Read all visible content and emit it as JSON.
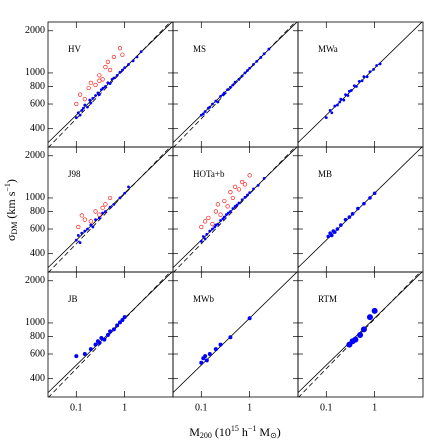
{
  "figure": {
    "xlabel": [
      "M",
      "200",
      " (10",
      "15",
      " h",
      "−1",
      " M",
      "⊙",
      ")"
    ],
    "ylabel": [
      "σ",
      "DM",
      " (km s",
      "−1",
      ")"
    ]
  },
  "chart_data": [
    {
      "type": "scatter",
      "title": "HV",
      "log_x": true,
      "log_y": true,
      "xlim": [
        0.026,
        10
      ],
      "ylim": [
        296,
        2310
      ],
      "xticks": [
        0.1,
        1
      ],
      "yticks": [
        400,
        600,
        800,
        1000,
        2000
      ],
      "show_xtick_labels": false,
      "show_ytick_labels": true,
      "lines": [
        {
          "dash": false,
          "x": [
            0.026,
            10
          ],
          "values": [
            318,
            2346
          ]
        },
        {
          "dash": true,
          "x": [
            0.026,
            10
          ],
          "values": [
            292,
            2420
          ]
        }
      ],
      "series": [
        {
          "color": "#0000ff",
          "marker": "dot",
          "size": 1.4,
          "x": [
            0.1,
            0.11,
            0.12,
            0.13,
            0.14,
            0.15,
            0.17,
            0.19,
            0.2,
            0.22,
            0.25,
            0.28,
            0.3,
            0.33,
            0.36,
            0.4,
            0.45,
            0.5,
            0.55,
            0.6,
            0.7,
            0.8,
            0.9,
            1.0,
            1.2,
            1.5,
            1.8,
            2.2
          ],
          "values": [
            480,
            520,
            500,
            540,
            560,
            590,
            570,
            640,
            610,
            660,
            690,
            720,
            700,
            760,
            780,
            800,
            850,
            840,
            900,
            920,
            960,
            1010,
            1050,
            1090,
            1150,
            1220,
            1300,
            1420
          ]
        },
        {
          "color": "#ff0000",
          "marker": "open",
          "size": 1.8,
          "x": [
            0.1,
            0.12,
            0.15,
            0.18,
            0.2,
            0.25,
            0.3,
            0.35,
            0.4,
            0.5,
            0.6,
            0.8,
            0.3,
            0.45,
            0.9
          ],
          "values": [
            600,
            700,
            650,
            780,
            850,
            820,
            960,
            900,
            1100,
            1050,
            1300,
            1500,
            880,
            1200,
            1350
          ]
        }
      ]
    },
    {
      "type": "scatter",
      "title": "MS",
      "log_x": true,
      "log_y": true,
      "xlim": [
        0.026,
        10
      ],
      "ylim": [
        296,
        2310
      ],
      "xticks": [
        0.1,
        1
      ],
      "yticks": [
        400,
        600,
        800,
        1000,
        2000
      ],
      "show_xtick_labels": false,
      "show_ytick_labels": false,
      "lines": [
        {
          "dash": false,
          "x": [
            0.026,
            10
          ],
          "values": [
            318,
            2346
          ]
        },
        {
          "dash": true,
          "x": [
            0.026,
            10
          ],
          "values": [
            292,
            2420
          ]
        }
      ],
      "series": [
        {
          "color": "#0000ff",
          "marker": "dot",
          "size": 1.4,
          "x": [
            0.1,
            0.11,
            0.12,
            0.14,
            0.15,
            0.17,
            0.2,
            0.22,
            0.25,
            0.28,
            0.3,
            0.35,
            0.4,
            0.45,
            0.5,
            0.6,
            0.7,
            0.8,
            0.9,
            1.0,
            1.2,
            1.4,
            1.7,
            2.0,
            2.5
          ],
          "values": [
            500,
            510,
            530,
            560,
            570,
            600,
            630,
            620,
            680,
            700,
            720,
            760,
            790,
            820,
            860,
            900,
            950,
            1000,
            1040,
            1080,
            1150,
            1210,
            1290,
            1370,
            1480
          ]
        }
      ]
    },
    {
      "type": "scatter",
      "title": "MWa",
      "log_x": true,
      "log_y": true,
      "xlim": [
        0.026,
        10
      ],
      "ylim": [
        296,
        2310
      ],
      "xticks": [
        0.1,
        1
      ],
      "yticks": [
        400,
        600,
        800,
        1000,
        2000
      ],
      "show_xtick_labels": false,
      "show_ytick_labels": false,
      "lines": [
        {
          "dash": false,
          "x": [
            0.026,
            10
          ],
          "values": [
            318,
            2346
          ]
        }
      ],
      "series": [
        {
          "color": "#0000ff",
          "marker": "dot",
          "size": 1.4,
          "x": [
            0.1,
            0.12,
            0.13,
            0.15,
            0.17,
            0.19,
            0.2,
            0.23,
            0.25,
            0.28,
            0.3,
            0.33,
            0.38,
            0.42,
            0.48,
            0.55,
            0.6,
            0.7,
            0.8,
            0.95,
            1.1,
            1.3
          ],
          "values": [
            480,
            540,
            520,
            580,
            590,
            620,
            650,
            640,
            700,
            690,
            740,
            750,
            810,
            800,
            870,
            880,
            940,
            940,
            1020,
            1060,
            1130,
            1160
          ]
        }
      ]
    },
    {
      "type": "scatter",
      "title": "J98",
      "log_x": true,
      "log_y": true,
      "xlim": [
        0.026,
        10
      ],
      "ylim": [
        296,
        2310
      ],
      "xticks": [
        0.1,
        1
      ],
      "yticks": [
        400,
        600,
        800,
        1000,
        2000
      ],
      "show_xtick_labels": false,
      "show_ytick_labels": true,
      "lines": [
        {
          "dash": false,
          "x": [
            0.026,
            10
          ],
          "values": [
            318,
            2346
          ]
        },
        {
          "dash": true,
          "x": [
            0.026,
            10
          ],
          "values": [
            292,
            2420
          ]
        }
      ],
      "series": [
        {
          "color": "#0000ff",
          "marker": "dot",
          "size": 1.4,
          "x": [
            0.1,
            0.11,
            0.12,
            0.13,
            0.15,
            0.17,
            0.2,
            0.22,
            0.25,
            0.3,
            0.35,
            0.4,
            0.5,
            0.6,
            0.8,
            1.0,
            1.2
          ],
          "values": [
            500,
            540,
            480,
            560,
            580,
            600,
            640,
            620,
            700,
            720,
            780,
            800,
            860,
            900,
            1000,
            1080,
            1200
          ]
        },
        {
          "color": "#ff0000",
          "marker": "open",
          "size": 1.8,
          "x": [
            0.11,
            0.13,
            0.15,
            0.2,
            0.25,
            0.3,
            0.35,
            0.4,
            0.5
          ],
          "values": [
            620,
            750,
            700,
            680,
            800,
            760,
            850,
            900,
            1000
          ]
        }
      ]
    },
    {
      "type": "scatter",
      "title": "HOTa+b",
      "log_x": true,
      "log_y": true,
      "xlim": [
        0.026,
        10
      ],
      "ylim": [
        296,
        2310
      ],
      "xticks": [
        0.1,
        1
      ],
      "yticks": [
        400,
        600,
        800,
        1000,
        2000
      ],
      "show_xtick_labels": false,
      "show_ytick_labels": false,
      "lines": [
        {
          "dash": false,
          "x": [
            0.026,
            10
          ],
          "values": [
            318,
            2346
          ]
        },
        {
          "dash": true,
          "x": [
            0.026,
            10
          ],
          "values": [
            292,
            2420
          ]
        }
      ],
      "series": [
        {
          "color": "#0000ff",
          "marker": "dot",
          "size": 1.4,
          "x": [
            0.1,
            0.11,
            0.12,
            0.13,
            0.15,
            0.17,
            0.19,
            0.2,
            0.22,
            0.25,
            0.28,
            0.3,
            0.33,
            0.36,
            0.4,
            0.45,
            0.5,
            0.55,
            0.6,
            0.7,
            0.8,
            0.9,
            1.0,
            1.2,
            1.5,
            2.0
          ],
          "values": [
            490,
            530,
            510,
            550,
            580,
            600,
            620,
            640,
            650,
            690,
            710,
            730,
            760,
            780,
            800,
            840,
            870,
            890,
            920,
            970,
            1010,
            1050,
            1090,
            1160,
            1230,
            1380
          ]
        },
        {
          "color": "#ff0000",
          "marker": "open",
          "size": 1.8,
          "x": [
            0.1,
            0.12,
            0.14,
            0.17,
            0.2,
            0.22,
            0.25,
            0.3,
            0.35,
            0.4,
            0.45,
            0.5,
            0.6,
            0.7,
            0.8,
            1.0
          ],
          "values": [
            620,
            680,
            720,
            650,
            800,
            900,
            760,
            950,
            870,
            1100,
            1000,
            1200,
            1150,
            1300,
            1250,
            1450
          ]
        }
      ]
    },
    {
      "type": "scatter",
      "title": "MB",
      "log_x": true,
      "log_y": true,
      "xlim": [
        0.026,
        10
      ],
      "ylim": [
        296,
        2310
      ],
      "xticks": [
        0.1,
        1
      ],
      "yticks": [
        400,
        600,
        800,
        1000,
        2000
      ],
      "show_xtick_labels": false,
      "show_ytick_labels": false,
      "lines": [
        {
          "dash": false,
          "x": [
            0.026,
            10
          ],
          "values": [
            318,
            2346
          ]
        }
      ],
      "series": [
        {
          "color": "#0000ff",
          "marker": "dot",
          "size": 1.8,
          "x": [
            0.11,
            0.12,
            0.13,
            0.14,
            0.15,
            0.17,
            0.2,
            0.25,
            0.3,
            0.35,
            0.45,
            0.6,
            0.8,
            1.0
          ],
          "values": [
            530,
            560,
            540,
            580,
            570,
            600,
            640,
            700,
            730,
            770,
            840,
            910,
            1000,
            1080
          ]
        }
      ]
    },
    {
      "type": "scatter",
      "title": "JB",
      "log_x": true,
      "log_y": true,
      "xlim": [
        0.026,
        10
      ],
      "ylim": [
        296,
        2310
      ],
      "xticks": [
        0.1,
        1
      ],
      "yticks": [
        400,
        600,
        800,
        1000,
        2000
      ],
      "show_xtick_labels": true,
      "show_ytick_labels": true,
      "lines": [
        {
          "dash": false,
          "x": [
            0.026,
            10
          ],
          "values": [
            318,
            2346
          ]
        },
        {
          "dash": true,
          "x": [
            0.026,
            10
          ],
          "values": [
            292,
            2420
          ]
        }
      ],
      "series": [
        {
          "color": "#0000ff",
          "marker": "dot",
          "size": 2,
          "x": [
            0.1,
            0.15,
            0.2,
            0.25,
            0.28,
            0.3,
            0.33,
            0.38,
            0.45,
            0.5,
            0.6,
            0.7,
            0.8,
            0.9,
            1.0
          ],
          "values": [
            580,
            600,
            650,
            700,
            740,
            720,
            780,
            760,
            820,
            870,
            900,
            960,
            1010,
            1050,
            1100
          ]
        }
      ]
    },
    {
      "type": "scatter",
      "title": "MWb",
      "log_x": true,
      "log_y": true,
      "xlim": [
        0.026,
        10
      ],
      "ylim": [
        296,
        2310
      ],
      "xticks": [
        0.1,
        1
      ],
      "yticks": [
        400,
        600,
        800,
        1000,
        2000
      ],
      "show_xtick_labels": true,
      "show_ytick_labels": false,
      "lines": [
        {
          "dash": false,
          "x": [
            0.026,
            10
          ],
          "values": [
            318,
            2346
          ]
        }
      ],
      "series": [
        {
          "color": "#0000ff",
          "marker": "dot",
          "size": 2,
          "x": [
            0.1,
            0.11,
            0.12,
            0.13,
            0.15,
            0.2,
            0.25,
            0.4,
            1.0
          ],
          "values": [
            520,
            560,
            580,
            540,
            600,
            650,
            700,
            790,
            1080
          ]
        }
      ]
    },
    {
      "type": "scatter",
      "title": "RTM",
      "log_x": true,
      "log_y": true,
      "xlim": [
        0.026,
        10
      ],
      "ylim": [
        296,
        2310
      ],
      "xticks": [
        0.1,
        1
      ],
      "yticks": [
        400,
        600,
        800,
        1000,
        2000
      ],
      "show_xtick_labels": true,
      "show_ytick_labels": false,
      "lines": [
        {
          "dash": false,
          "x": [
            0.026,
            10
          ],
          "values": [
            318,
            2346
          ]
        },
        {
          "dash": true,
          "x": [
            0.026,
            10
          ],
          "values": [
            292,
            2420
          ]
        }
      ],
      "series": [
        {
          "color": "#0000ff",
          "marker": "dot",
          "size": 3,
          "x": [
            0.3,
            0.35,
            0.4,
            0.5,
            0.6,
            0.8,
            1.0
          ],
          "values": [
            700,
            740,
            760,
            820,
            900,
            1100,
            1220
          ]
        }
      ]
    }
  ]
}
